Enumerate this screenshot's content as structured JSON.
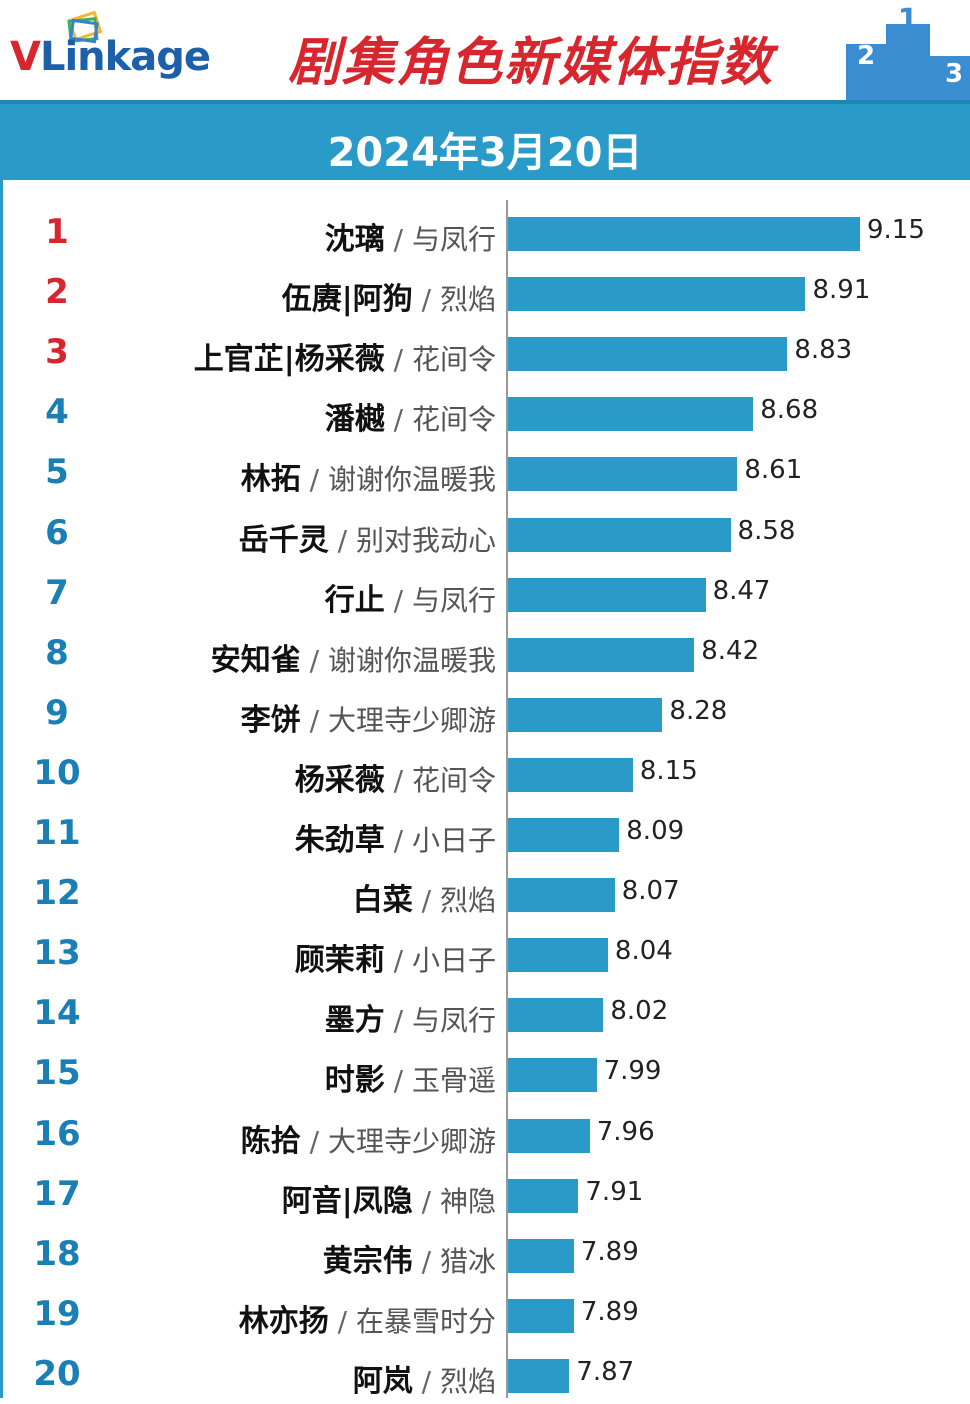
{
  "header": {
    "logo_text_v": "V",
    "logo_text_rest": "Linkage",
    "title": "剧集角色新媒体指数",
    "podium_numbers": [
      "2",
      "1",
      "3"
    ]
  },
  "date": "2024年3月20日",
  "colors": {
    "bar": "#2a9ac8",
    "top_rank": "#d8262e",
    "rank": "#1a7fb5",
    "title": "#d8262e"
  },
  "chart_data": {
    "type": "bar",
    "orientation": "horizontal",
    "title": "剧集角色新媒体指数",
    "subtitle": "2024年3月20日",
    "xlim": [
      7.6,
      9.35
    ],
    "rows": [
      {
        "rank": "1",
        "role": "沈璃",
        "drama": "与凤行",
        "value": 9.15,
        "label": "9.15"
      },
      {
        "rank": "2",
        "role": "伍赓|阿狗",
        "drama": "烈焰",
        "value": 8.91,
        "label": "8.91"
      },
      {
        "rank": "3",
        "role": "上官芷|杨采薇",
        "drama": "花间令",
        "value": 8.83,
        "label": "8.83"
      },
      {
        "rank": "4",
        "role": "潘樾",
        "drama": "花间令",
        "value": 8.68,
        "label": "8.68"
      },
      {
        "rank": "5",
        "role": "林拓",
        "drama": "谢谢你温暖我",
        "value": 8.61,
        "label": "8.61"
      },
      {
        "rank": "6",
        "role": "岳千灵",
        "drama": "别对我动心",
        "value": 8.58,
        "label": "8.58"
      },
      {
        "rank": "7",
        "role": "行止",
        "drama": "与凤行",
        "value": 8.47,
        "label": "8.47"
      },
      {
        "rank": "8",
        "role": "安知雀",
        "drama": "谢谢你温暖我",
        "value": 8.42,
        "label": "8.42"
      },
      {
        "rank": "9",
        "role": "李饼",
        "drama": "大理寺少卿游",
        "value": 8.28,
        "label": "8.28"
      },
      {
        "rank": "10",
        "role": "杨采薇",
        "drama": "花间令",
        "value": 8.15,
        "label": "8.15"
      },
      {
        "rank": "11",
        "role": "朱劲草",
        "drama": "小日子",
        "value": 8.09,
        "label": "8.09"
      },
      {
        "rank": "12",
        "role": "白菜",
        "drama": "烈焰",
        "value": 8.07,
        "label": "8.07"
      },
      {
        "rank": "13",
        "role": "顾茉莉",
        "drama": "小日子",
        "value": 8.04,
        "label": "8.04"
      },
      {
        "rank": "14",
        "role": "墨方",
        "drama": "与凤行",
        "value": 8.02,
        "label": "8.02"
      },
      {
        "rank": "15",
        "role": "时影",
        "drama": "玉骨遥",
        "value": 7.99,
        "label": "7.99"
      },
      {
        "rank": "16",
        "role": "陈拾",
        "drama": "大理寺少卿游",
        "value": 7.96,
        "label": "7.96"
      },
      {
        "rank": "17",
        "role": "阿音|凤隐",
        "drama": "神隐",
        "value": 7.91,
        "label": "7.91"
      },
      {
        "rank": "18",
        "role": "黄宗伟",
        "drama": "猎冰",
        "value": 7.89,
        "label": "7.89"
      },
      {
        "rank": "19",
        "role": "林亦扬",
        "drama": "在暴雪时分",
        "value": 7.89,
        "label": "7.89"
      },
      {
        "rank": "20",
        "role": "阿岚",
        "drama": "烈焰",
        "value": 7.87,
        "label": "7.87"
      }
    ]
  }
}
